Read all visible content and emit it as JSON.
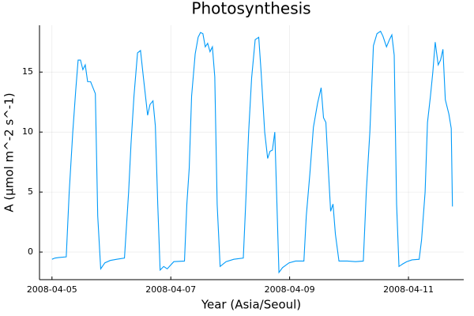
{
  "chart_data": {
    "type": "line",
    "title": "Photosynthesis",
    "x_label": "Year (Asia/Seoul)",
    "y_label": "A (µmol m^-2 s^-1)",
    "x": [
      0,
      0.05,
      0.12,
      0.24,
      0.29,
      0.35,
      0.4,
      0.44,
      0.48,
      0.52,
      0.56,
      0.6,
      0.65,
      0.73,
      0.77,
      0.82,
      0.89,
      0.98,
      1.09,
      1.22,
      1.29,
      1.33,
      1.38,
      1.44,
      1.49,
      1.54,
      1.61,
      1.65,
      1.7,
      1.74,
      1.78,
      1.82,
      1.88,
      1.94,
      2.05,
      2.23,
      2.27,
      2.31,
      2.35,
      2.41,
      2.46,
      2.5,
      2.54,
      2.58,
      2.62,
      2.66,
      2.7,
      2.74,
      2.78,
      2.83,
      2.93,
      3.06,
      3.22,
      3.26,
      3.31,
      3.36,
      3.42,
      3.48,
      3.52,
      3.58,
      3.63,
      3.67,
      3.71,
      3.75,
      3.78,
      3.82,
      3.88,
      3.99,
      4.1,
      4.24,
      4.28,
      4.34,
      4.4,
      4.47,
      4.53,
      4.57,
      4.61,
      4.65,
      4.69,
      4.73,
      4.77,
      4.83,
      4.97,
      5.11,
      5.24,
      5.29,
      5.35,
      5.41,
      5.47,
      5.53,
      5.57,
      5.63,
      5.68,
      5.72,
      5.76,
      5.8,
      5.84,
      5.9,
      5.97,
      6.06,
      6.18,
      6.22,
      6.28,
      6.32,
      6.37,
      6.41,
      6.45,
      6.5,
      6.54,
      6.58,
      6.62,
      6.68,
      6.72,
      6.74
    ],
    "series": [
      {
        "name": "A",
        "color": "#009af9",
        "values": [
          -0.6,
          -0.5,
          -0.45,
          -0.4,
          5,
          10,
          13.5,
          16,
          16,
          15.2,
          15.6,
          14.2,
          14.2,
          13.2,
          3,
          -1.4,
          -0.9,
          -0.7,
          -0.6,
          -0.5,
          5,
          9,
          13,
          16.6,
          16.8,
          14.5,
          11.4,
          12.3,
          12.6,
          10.5,
          4,
          -1.5,
          -1.2,
          -1.4,
          -0.8,
          -0.75,
          4,
          7,
          13,
          16.5,
          17.9,
          18.3,
          18.2,
          17.1,
          17.4,
          16.7,
          17.1,
          14.6,
          4,
          -1.2,
          -0.8,
          -0.6,
          -0.5,
          4,
          10,
          14.5,
          17.7,
          17.9,
          15,
          10,
          7.8,
          8.4,
          8.5,
          10,
          5,
          -1.7,
          -1.3,
          -0.9,
          -0.75,
          -0.75,
          3,
          6.5,
          10.4,
          12.4,
          13.7,
          11.2,
          10.8,
          7,
          3.4,
          4,
          1.5,
          -0.75,
          -0.75,
          -0.8,
          -0.75,
          5,
          10,
          17.2,
          18.2,
          18.4,
          18,
          17.1,
          17.7,
          18.1,
          16.4,
          4,
          -1.2,
          -1,
          -0.8,
          -0.65,
          -0.6,
          1,
          5,
          10.8,
          13,
          15,
          17.5,
          15.6,
          16,
          16.9,
          12.7,
          11.5,
          10.3,
          3.8
        ]
      }
    ],
    "xlim": [
      -0.21,
      6.93
    ],
    "ylim": [
      -2.3,
      18.9
    ],
    "xticks": [
      {
        "value": 0,
        "label": "2008-04-05"
      },
      {
        "value": 2,
        "label": "2008-04-07"
      },
      {
        "value": 4,
        "label": "2008-04-09"
      },
      {
        "value": 6,
        "label": "2008-04-11"
      }
    ],
    "yticks": [
      0,
      5,
      10,
      15
    ],
    "grid": true
  }
}
